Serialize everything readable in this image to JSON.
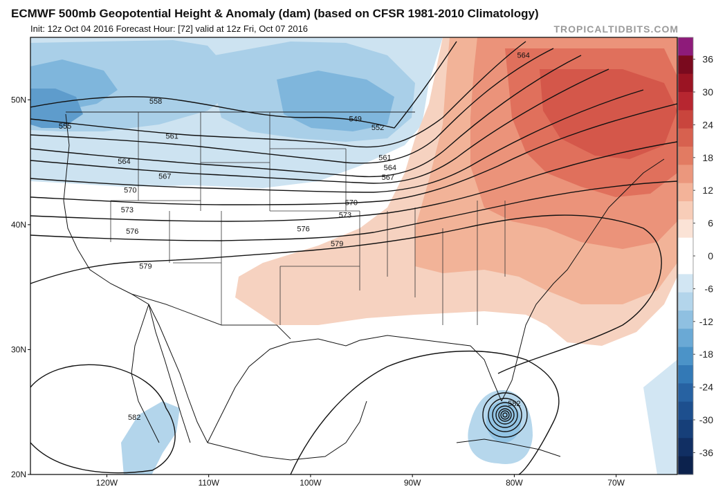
{
  "header": {
    "title": "ECMWF 500mb Geopotential Height & Anomaly (dam) (based on CFSR 1981-2010 Climatology)",
    "subtitle": "Init: 12z Oct 04 2016   Forecast Hour: [72]   valid at 12z Fri, Oct 07 2016",
    "brand": "TROPICALTIDBITS.COM"
  },
  "map": {
    "lat_labels": [
      {
        "text": "50N",
        "lat": 50
      },
      {
        "text": "40N",
        "lat": 40
      },
      {
        "text": "30N",
        "lat": 30
      },
      {
        "text": "20N",
        "lat": 20
      }
    ],
    "lon_labels": [
      {
        "text": "120W",
        "lon": -120
      },
      {
        "text": "110W",
        "lon": -110
      },
      {
        "text": "100W",
        "lon": -100
      },
      {
        "text": "90W",
        "lon": -90
      },
      {
        "text": "80W",
        "lon": -80
      },
      {
        "text": "70W",
        "lon": -70
      }
    ],
    "contour_labels": [
      {
        "text": "555",
        "lon": -124.1,
        "lat": 47.9
      },
      {
        "text": "558",
        "lon": -115.2,
        "lat": 49.9
      },
      {
        "text": "561",
        "lon": -113.6,
        "lat": 47.1
      },
      {
        "text": "564",
        "lon": -118.3,
        "lat": 45.1
      },
      {
        "text": "567",
        "lon": -114.3,
        "lat": 43.9
      },
      {
        "text": "570",
        "lon": -117.7,
        "lat": 42.8
      },
      {
        "text": "573",
        "lon": -118.0,
        "lat": 41.2
      },
      {
        "text": "576",
        "lon": -117.5,
        "lat": 39.5
      },
      {
        "text": "579",
        "lon": -116.2,
        "lat": 36.7
      },
      {
        "text": "582",
        "lon": -117.3,
        "lat": 24.6
      },
      {
        "text": "549",
        "lon": -95.6,
        "lat": 48.5
      },
      {
        "text": "552",
        "lon": -93.4,
        "lat": 47.8
      },
      {
        "text": "561",
        "lon": -92.7,
        "lat": 45.4
      },
      {
        "text": "564",
        "lon": -92.2,
        "lat": 44.6
      },
      {
        "text": "567",
        "lon": -92.4,
        "lat": 43.8
      },
      {
        "text": "570",
        "lon": -96.0,
        "lat": 41.8
      },
      {
        "text": "573",
        "lon": -96.6,
        "lat": 40.8
      },
      {
        "text": "576",
        "lon": -100.7,
        "lat": 39.7
      },
      {
        "text": "579",
        "lon": -97.4,
        "lat": 38.5
      },
      {
        "text": "564",
        "lon": -79.1,
        "lat": 53.6
      },
      {
        "text": "582",
        "lon": -80.0,
        "lat": 25.7
      }
    ],
    "anomaly_regions": [
      {
        "name": "west-canada-trough",
        "value": -12,
        "color": "#6fa9d5"
      },
      {
        "name": "central-canada-trough",
        "value": -9,
        "color": "#8fbfe0"
      },
      {
        "name": "northeast-ridge",
        "value": 21,
        "color": "#d55a4c"
      },
      {
        "name": "southeast-positive",
        "value": 6,
        "color": "#f3bfa8"
      },
      {
        "name": "hurricane-low",
        "value": -9,
        "color": "#92c4e4"
      },
      {
        "name": "baja-negative",
        "value": -6,
        "color": "#a9d0ea"
      }
    ],
    "hurricane_center": {
      "lon": -80.1,
      "lat": 27.8
    }
  },
  "colorbar": {
    "items": [
      {
        "label": "36",
        "value": 36
      },
      {
        "label": "30",
        "value": 30
      },
      {
        "label": "24",
        "value": 24
      },
      {
        "label": "18",
        "value": 18
      },
      {
        "label": "12",
        "value": 12
      },
      {
        "label": "6",
        "value": 6
      },
      {
        "label": "0",
        "value": 0
      },
      {
        "label": "-6",
        "value": -6
      },
      {
        "label": "-12",
        "value": -12
      },
      {
        "label": "-18",
        "value": -18
      },
      {
        "label": "-24",
        "value": -24
      },
      {
        "label": "-30",
        "value": -30
      },
      {
        "label": "-36",
        "value": -36
      }
    ],
    "colors": [
      "#8e1b7a",
      "#7a0a1e",
      "#9b1423",
      "#b72630",
      "#c9453d",
      "#d7614f",
      "#e27b62",
      "#eb977d",
      "#f3b399",
      "#f8cdb8",
      "#fbe3d6",
      "#ffffff",
      "#ffffff",
      "#d2e6f3",
      "#b3d5eb",
      "#8fc0e1",
      "#6aa9d5",
      "#4b93c8",
      "#3379b6",
      "#2762a2",
      "#1d4f8e",
      "#163f79",
      "#112f63",
      "#0c224d"
    ]
  }
}
